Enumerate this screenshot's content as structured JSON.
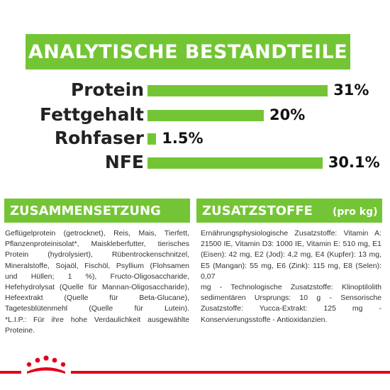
{
  "header": {
    "title": "ANALYTISCHE BESTANDTEILE"
  },
  "chart_data": {
    "type": "bar",
    "categories": [
      "Protein",
      "Fettgehalt",
      "Rohfaser",
      "NFE"
    ],
    "values": [
      31,
      20,
      1.5,
      30.1
    ],
    "value_labels": [
      "31%",
      "20%",
      "1.5%",
      "30.1%"
    ],
    "xlabel": "",
    "ylabel": "",
    "color": "#74c535"
  },
  "zusammensetzung": {
    "title": "ZUSAMMENSETZUNG",
    "lines": [
      "Geflügelprotein (getrocknet), Reis, Mais, Tierfett,",
      "Pflanzenproteinisolat*, Maiskleberfutter, tierisches",
      "Protein (hydrolysiert), Rübentrockenschnitzel,",
      "Mineralstoffe, Sojaöl, Fischöl, Psyllium (Flohsamen",
      "und Hüllen; 1 %), Fructo-Oligosaccharide,",
      "Hefehydrolysat (Quelle für Mannan-Oligosaccharide),",
      "Hefeextrakt (Quelle für Beta-Glucane),",
      "Tagetesblütenmehl (Quelle für Lutein).",
      "*L.I.P.: Für ihre hohe Verdaulichkeit ausgewählte",
      "Proteine."
    ]
  },
  "zusatzstoffe": {
    "title": "ZUSATZSTOFFE",
    "unit": "(pro kg)",
    "lines": [
      "Ernährungsphysiologische Zusatzstoffe: Vitamin A:",
      "21500 IE, Vitamin D3: 1000 IE, Vitamin E: 510 mg, E1",
      "(Eisen): 42 mg, E2 (Jod): 4,2 mg, E4 (Kupfer): 13 mg,",
      "E5 (Mangan): 55 mg, E6 (Zink): 115 mg, E8 (Selen): 0,07",
      "mg - Technologische Zusatzstoffe: Klinoptilolith",
      "sedimentären Ursprungs: 10 g - Sensorische",
      "Zusatzstoffe: Yucca-Extrakt: 125 mg -",
      "Konservierungsstoffe - Antioxidanzien."
    ]
  },
  "colors": {
    "accent": "#74c535",
    "brand_red": "#e2001a"
  },
  "footer": {
    "logo_icon": "royal-canin-crown-icon"
  }
}
